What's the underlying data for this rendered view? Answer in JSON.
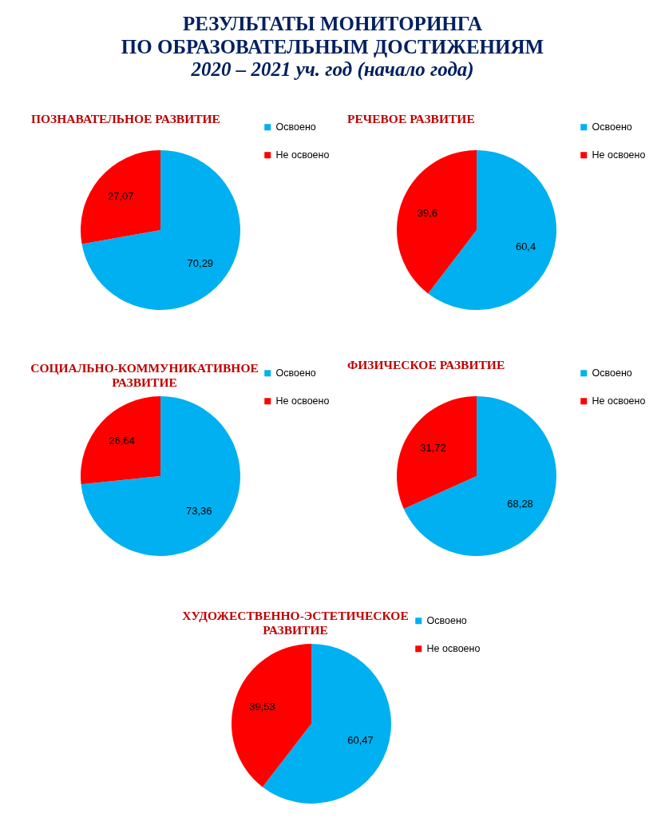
{
  "chart_data": [
    {
      "type": "other",
      "title": "РЕЗУЛЬТАТЫ МОНИТОРИНГА\nПО ОБРАЗОВАТЕЛЬНЫМ ДОСТИЖЕНИЯМ",
      "subtitle": "2020 – 2021 уч. год (начало года)"
    },
    {
      "type": "pie",
      "title": "ПОЗНАВАТЕЛЬНОЕ РАЗВИТИЕ",
      "categories": [
        "Освоено",
        "Не освоено"
      ],
      "values": [
        70.29,
        27.07
      ],
      "colors": [
        "#00b0f0",
        "#ff0000"
      ],
      "value_labels": [
        "70,29",
        "27,07"
      ],
      "legend": "top right"
    },
    {
      "type": "pie",
      "title": "РЕЧЕВОЕ РАЗВИТИЕ",
      "categories": [
        "Освоено",
        "Не освоено"
      ],
      "values": [
        60.4,
        39.6
      ],
      "colors": [
        "#00b0f0",
        "#ff0000"
      ],
      "value_labels": [
        "60,4",
        "39,6"
      ],
      "legend": "top right"
    },
    {
      "type": "pie",
      "title": "СОЦИАЛЬНО-КОММУНИКАТИВНОЕ\nРАЗВИТИЕ",
      "categories": [
        "Освоено",
        "Не освоено"
      ],
      "values": [
        73.36,
        26.64
      ],
      "colors": [
        "#00b0f0",
        "#ff0000"
      ],
      "value_labels": [
        "73,36",
        "26,64"
      ],
      "legend": "top right"
    },
    {
      "type": "pie",
      "title": "ФИЗИЧЕСКОЕ РАЗВИТИЕ",
      "categories": [
        "Освоено",
        "Не освоено"
      ],
      "values": [
        68.28,
        31.72
      ],
      "colors": [
        "#00b0f0",
        "#ff0000"
      ],
      "value_labels": [
        "68,28",
        "31,72"
      ],
      "legend": "top right"
    },
    {
      "type": "pie",
      "title": "ХУДОЖЕСТВЕННО-ЭСТЕТИЧЕСКОЕ\nРАЗВИТИЕ",
      "categories": [
        "Освоено",
        "Не освоено"
      ],
      "values": [
        60.47,
        39.53
      ],
      "colors": [
        "#00b0f0",
        "#ff0000"
      ],
      "value_labels": [
        "60,47",
        "39,53"
      ],
      "legend": "top right"
    }
  ]
}
